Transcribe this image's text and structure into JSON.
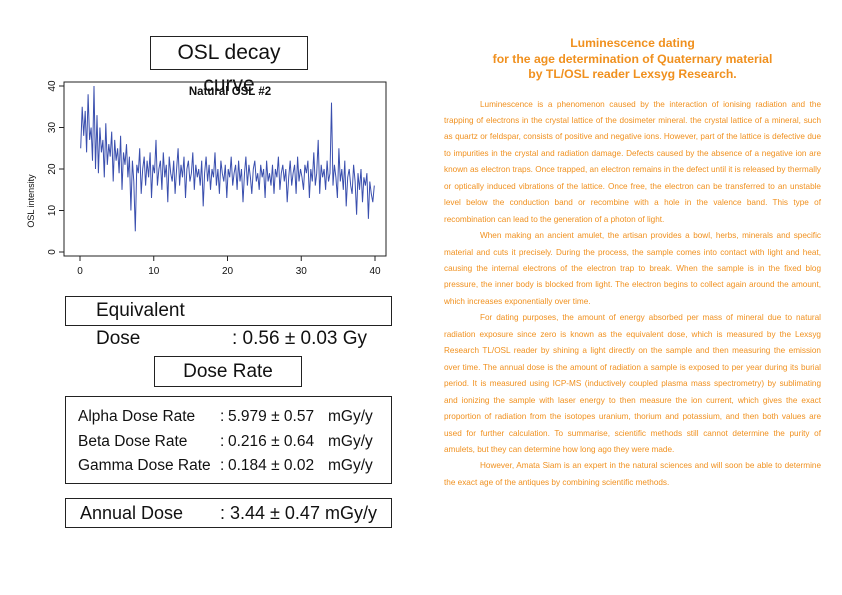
{
  "left": {
    "title": "OSL decay curve",
    "equivalent_dose": {
      "label": "Equivalent Dose",
      "value": ": 0.56 ± 0.03 Gy"
    },
    "dose_rate_title": "Dose Rate",
    "dose_rates": [
      {
        "label": "Alpha Dose Rate",
        "sep": ":",
        "value": "5.979 ± 0.57",
        "unit": "mGy/y"
      },
      {
        "label": "Beta Dose Rate",
        "sep": ":",
        "value": "0.216 ± 0.64",
        "unit": "mGy/y"
      },
      {
        "label": "Gamma Dose Rate",
        "sep": ":",
        "value": "0.184 ± 0.02",
        "unit": "mGy/y"
      }
    ],
    "annual_dose": {
      "label": "Annual Dose",
      "value": ": 3.44 ± 0.47 mGy/y"
    }
  },
  "chart_data": {
    "type": "line",
    "title": "Natural OSL #2",
    "xlabel": "",
    "ylabel": "OSL intensity",
    "xlim": [
      0,
      40
    ],
    "ylim": [
      0,
      40
    ],
    "xticks": [
      "0",
      "10",
      "20",
      "30",
      "40"
    ],
    "yticks": [
      "0",
      "10",
      "20",
      "30",
      "40"
    ],
    "grid": false,
    "color": "#3a4fae",
    "x": [
      0.1,
      0.3,
      0.5,
      0.7,
      0.9,
      1.1,
      1.3,
      1.5,
      1.7,
      1.9,
      2.1,
      2.3,
      2.5,
      2.7,
      2.9,
      3.1,
      3.3,
      3.5,
      3.7,
      3.9,
      4.1,
      4.3,
      4.5,
      4.7,
      4.9,
      5.1,
      5.3,
      5.5,
      5.7,
      5.9,
      6.1,
      6.3,
      6.5,
      6.7,
      6.9,
      7.1,
      7.3,
      7.5,
      7.7,
      7.9,
      8.1,
      8.3,
      8.5,
      8.7,
      8.9,
      9.1,
      9.3,
      9.5,
      9.7,
      9.9,
      10.1,
      10.3,
      10.5,
      10.7,
      10.9,
      11.1,
      11.3,
      11.5,
      11.7,
      11.9,
      12.1,
      12.3,
      12.5,
      12.7,
      12.9,
      13.1,
      13.3,
      13.5,
      13.7,
      13.9,
      14.1,
      14.3,
      14.5,
      14.7,
      14.9,
      15.1,
      15.3,
      15.5,
      15.7,
      15.9,
      16.1,
      16.3,
      16.5,
      16.7,
      16.9,
      17.1,
      17.3,
      17.5,
      17.7,
      17.9,
      18.1,
      18.3,
      18.5,
      18.7,
      18.9,
      19.1,
      19.3,
      19.5,
      19.7,
      19.9,
      20.1,
      20.3,
      20.5,
      20.7,
      20.9,
      21.1,
      21.3,
      21.5,
      21.7,
      21.9,
      22.1,
      22.3,
      22.5,
      22.7,
      22.9,
      23.1,
      23.3,
      23.5,
      23.7,
      23.9,
      24.1,
      24.3,
      24.5,
      24.7,
      24.9,
      25.1,
      25.3,
      25.5,
      25.7,
      25.9,
      26.1,
      26.3,
      26.5,
      26.7,
      26.9,
      27.1,
      27.3,
      27.5,
      27.7,
      27.9,
      28.1,
      28.3,
      28.5,
      28.7,
      28.9,
      29.1,
      29.3,
      29.5,
      29.7,
      29.9,
      30.1,
      30.3,
      30.5,
      30.7,
      30.9,
      31.1,
      31.3,
      31.5,
      31.7,
      31.9,
      32.1,
      32.3,
      32.5,
      32.7,
      32.9,
      33.1,
      33.3,
      33.5,
      33.7,
      33.9,
      34.1,
      34.3,
      34.5,
      34.7,
      34.9,
      35.1,
      35.3,
      35.5,
      35.7,
      35.9,
      36.1,
      36.3,
      36.5,
      36.7,
      36.9,
      37.1,
      37.3,
      37.5,
      37.7,
      37.9,
      38.1,
      38.3,
      38.5,
      38.7,
      38.9,
      39.1,
      39.3,
      39.5,
      39.7,
      39.9
    ],
    "y": [
      25,
      35,
      28,
      34,
      24,
      38,
      27,
      30,
      22,
      40,
      20,
      33,
      19,
      30,
      24,
      27,
      18,
      31,
      21,
      26,
      23,
      29,
      17,
      27,
      22,
      25,
      19,
      28,
      15,
      24,
      21,
      26,
      18,
      23,
      10,
      22,
      17,
      5,
      21,
      19,
      25,
      14,
      20,
      23,
      16,
      22,
      18,
      24,
      13,
      21,
      19,
      27,
      16,
      20,
      22,
      15,
      24,
      18,
      21,
      12,
      23,
      19,
      17,
      22,
      14,
      20,
      25,
      16,
      21,
      18,
      23,
      13,
      20,
      22,
      17,
      19,
      24,
      15,
      21,
      18,
      20,
      16,
      22,
      11,
      19,
      23,
      17,
      21,
      15,
      20,
      18,
      24,
      16,
      20,
      14,
      22,
      19,
      17,
      21,
      13,
      20,
      18,
      23,
      16,
      19,
      21,
      15,
      22,
      17,
      20,
      12,
      19,
      23,
      16,
      21,
      18,
      14,
      20,
      22,
      17,
      19,
      15,
      21,
      18,
      20,
      13,
      22,
      17,
      19,
      16,
      21,
      14,
      20,
      18,
      23,
      15,
      19,
      21,
      17,
      20,
      12,
      18,
      22,
      16,
      19,
      21,
      14,
      23,
      17,
      20,
      18,
      15,
      21,
      19,
      22,
      13,
      20,
      17,
      24,
      16,
      19,
      27,
      14,
      21,
      18,
      20,
      15,
      22,
      17,
      19,
      36,
      16,
      21,
      18,
      13,
      25,
      17,
      20,
      15,
      22,
      11,
      18,
      20,
      16,
      14,
      21,
      17,
      9,
      19,
      15,
      20,
      12,
      18,
      16,
      19,
      8,
      17,
      14,
      12,
      16
    ]
  },
  "right": {
    "heading": [
      "Luminescence dating",
      "for the age determination of Quaternary material",
      "by TL/OSL reader Lexsyg Research."
    ],
    "paragraphs": [
      "Luminescence is a phenomenon caused by the interaction of ionising radiation and the trapping of electrons in the crystal lattice of the dosimeter mineral. the crystal lattice of a mineral, such as quartz or feldspar, consists of positive and negative ions. However, part of the lattice is defective due to impurities in the crystal and radiation damage. Defects caused by the absence of a negative ion are known as electron traps. Once trapped, an electron remains in the defect until it is released by thermally or optically induced vibrations of the lattice. Once free, the electron can be transferred to an unstable level below the conduction band or recombine with a hole in the valence band. This type of recombination can lead to the generation of a photon of light.",
      "When making an ancient amulet, the artisan provides a bowl, herbs, minerals and specific material and cuts it precisely. During the process, the sample comes into contact with light and heat, causing the internal electrons of the electron trap to break. When the sample is in the fixed blog pressure, the inner body is blocked from light. The electron begins to collect again around the amount, which increases exponentially over time.",
      "For dating purposes, the amount of energy absorbed per mass of mineral due to natural radiation exposure since zero is known as the equivalent dose, which is measured by the Lexsyg Research TL/OSL reader by shining a light directly on the sample and then measuring the emission over time. The annual dose is the amount of radiation a sample is exposed to per year during its burial period. It is measured using ICP-MS (inductively coupled plasma mass spectrometry) by sublimating and ionizing the sample with laser energy to then measure the ion current, which gives the exact proportion of radiation from the isotopes uranium, thorium and potassium, and then both values are used for further calculation. To summarise, scientific methods still cannot determine the purity of amulets, but they can determine how long ago they were made.",
      "However, Amata Siam is an expert in the natural sciences and will soon be able to determine the exact age of the antiques by combining scientific methods."
    ]
  }
}
